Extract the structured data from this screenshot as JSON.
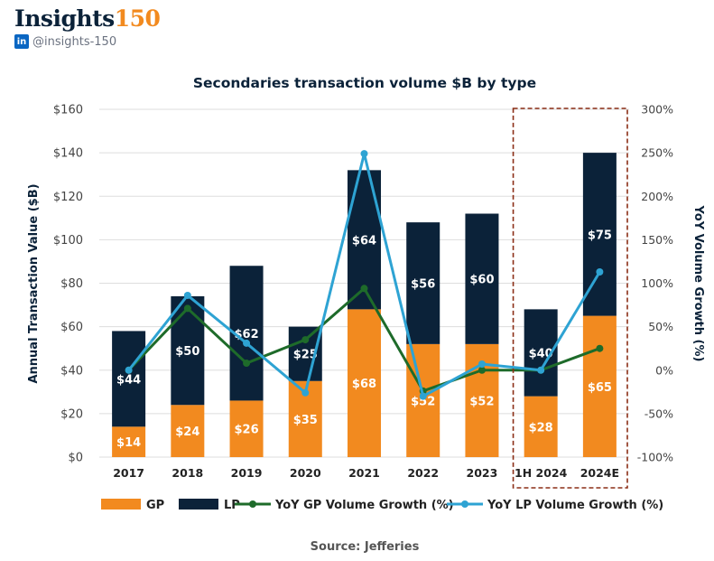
{
  "brand": {
    "name_main": "Insights",
    "name_accent": "150",
    "handle": "@insights-150",
    "icon": "linkedin-icon",
    "icon_text": "in"
  },
  "colors": {
    "gp": "#f28a1f",
    "lp": "#0b2239",
    "gp_growth": "#1e6b2a",
    "lp_growth": "#2ea3d3",
    "highlight_box": "#8b2e16"
  },
  "source": "Source: Jefferies",
  "chart_data": {
    "type": "bar",
    "stacked": true,
    "title": "Secondaries transaction volume $B by type",
    "ylabel": "Annual Transaction Value ($B)",
    "y2label": "YoY Volume Growth (%)",
    "ylim": [
      0,
      160
    ],
    "y2lim": [
      -100,
      300
    ],
    "y_ticks": [
      "$0",
      "$20",
      "$40",
      "$60",
      "$80",
      "$100",
      "$120",
      "$140",
      "$160"
    ],
    "y2_ticks": [
      "-100%",
      "-50%",
      "0%",
      "50%",
      "100%",
      "150%",
      "200%",
      "250%",
      "300%"
    ],
    "categories": [
      "2017",
      "2018",
      "2019",
      "2020",
      "2021",
      "2022",
      "2023",
      "1H 2024",
      "2024E"
    ],
    "series": [
      {
        "name": "GP",
        "values": [
          14,
          24,
          26,
          35,
          68,
          52,
          52,
          28,
          65
        ],
        "labels": [
          "$14",
          "$24",
          "$26",
          "$35",
          "$68",
          "$52",
          "$52",
          "$28",
          "$65"
        ]
      },
      {
        "name": "LP",
        "values": [
          44,
          50,
          62,
          25,
          64,
          56,
          60,
          40,
          75
        ],
        "labels": [
          "$44",
          "$50",
          "$62",
          "$25",
          "$64",
          "$56",
          "$60",
          "$40",
          "$75"
        ]
      }
    ],
    "lines": [
      {
        "name": "YoY GP Volume Growth (%)",
        "values": [
          0,
          71,
          8,
          35,
          94,
          -24,
          0,
          0,
          25
        ]
      },
      {
        "name": "YoY LP Volume Growth (%)",
        "values": [
          0,
          86,
          31,
          -26,
          249,
          -30,
          7,
          0,
          113
        ]
      }
    ],
    "highlight_categories": [
      "1H 2024",
      "2024E"
    ],
    "grid": true,
    "legend_position": "bottom"
  }
}
